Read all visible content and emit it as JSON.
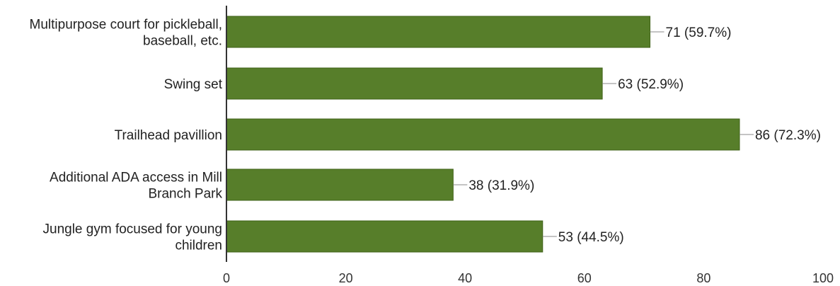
{
  "chart_data": {
    "type": "bar",
    "orientation": "horizontal",
    "categories": [
      [
        "Multipurpose court for pickleball,",
        "baseball, etc."
      ],
      [
        "Swing set"
      ],
      [
        "Trailhead pavillion"
      ],
      [
        "Additional ADA access in Mill",
        "Branch Park"
      ],
      [
        "Jungle gym focused for young",
        "children"
      ]
    ],
    "values": [
      71,
      63,
      86,
      38,
      53
    ],
    "data_labels": [
      "71 (59.7%)",
      "63 (52.9%)",
      "86 (72.3%)",
      "38 (31.9%)",
      "53 (44.5%)"
    ],
    "xlim": [
      0,
      100
    ],
    "xticks": [
      0,
      20,
      40,
      60,
      80,
      100
    ],
    "grid": false,
    "bar_color": "#577e2a",
    "bar_border_color": "#3f6118"
  }
}
